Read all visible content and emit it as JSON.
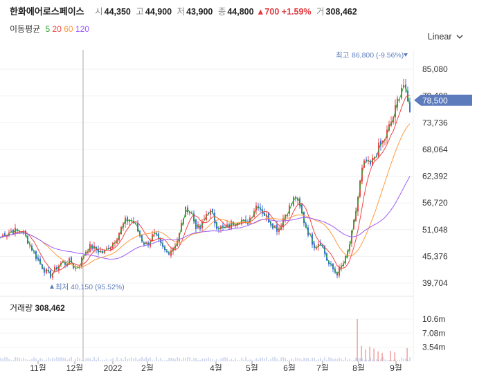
{
  "header": {
    "stock_name": "한화에어로스페이스",
    "open_label": "시",
    "open_value": "44,350",
    "high_label": "고",
    "high_value": "44,900",
    "low_label": "저",
    "low_value": "43,900",
    "close_label": "종",
    "close_value": "44,800",
    "change_value": "▲700",
    "change_pct": "+1.59%",
    "volume_label": "거",
    "volume_value": "308,462"
  },
  "ma_legend": {
    "label": "이동평균",
    "items": [
      {
        "period": "5",
        "color": "#2eaa2e"
      },
      {
        "period": "20",
        "color": "#ee4444"
      },
      {
        "period": "60",
        "color": "#ff9a3c"
      },
      {
        "period": "120",
        "color": "#9b5cf6"
      }
    ]
  },
  "scale_selector": {
    "label": "Linear",
    "icon": "chevron-down-icon"
  },
  "price_tag": {
    "value": "78,500",
    "color": "#5b7bbd"
  },
  "annotations": {
    "high": {
      "label": "최고",
      "value": "86,800 (-9.56%)"
    },
    "low": {
      "label": "최저",
      "value": "40,150 (95.52%)"
    }
  },
  "volume_panel": {
    "label": "거래량",
    "value": "308,462"
  },
  "chart_data": {
    "type": "candlestick",
    "price_axis": {
      "ticks": [
        "85,080",
        "79,408",
        "73,736",
        "68,064",
        "62,392",
        "56,720",
        "51,048",
        "45,376",
        "39,704"
      ],
      "ylim": [
        38500,
        89000
      ]
    },
    "volume_axis": {
      "ticks": [
        "10.6m",
        "7.08m",
        "3.54m"
      ]
    },
    "x_ticks": [
      "11월",
      "12월",
      "2022",
      "2월",
      "4월",
      "5월",
      "6월",
      "7월",
      "8월",
      "9월"
    ],
    "close_path": [
      [
        0,
        49200
      ],
      [
        6,
        50200
      ],
      [
        12,
        50400
      ],
      [
        18,
        51000
      ],
      [
        24,
        50600
      ],
      [
        30,
        50800
      ],
      [
        36,
        49800
      ],
      [
        42,
        48200
      ],
      [
        48,
        46500
      ],
      [
        54,
        44800
      ],
      [
        60,
        43400
      ],
      [
        66,
        42200
      ],
      [
        72,
        41200
      ],
      [
        78,
        42300
      ],
      [
        84,
        43400
      ],
      [
        90,
        44200
      ],
      [
        96,
        43800
      ],
      [
        102,
        44400
      ],
      [
        108,
        42700
      ],
      [
        114,
        43500
      ],
      [
        120,
        45400
      ],
      [
        126,
        47200
      ],
      [
        132,
        47400
      ],
      [
        138,
        46800
      ],
      [
        144,
        46500
      ],
      [
        150,
        46000
      ],
      [
        156,
        47300
      ],
      [
        162,
        48100
      ],
      [
        168,
        49500
      ],
      [
        174,
        51000
      ],
      [
        180,
        52600
      ],
      [
        186,
        53300
      ],
      [
        192,
        52800
      ],
      [
        198,
        51100
      ],
      [
        204,
        49200
      ],
      [
        210,
        47800
      ],
      [
        216,
        48600
      ],
      [
        222,
        50100
      ],
      [
        228,
        48700
      ],
      [
        234,
        47200
      ],
      [
        240,
        46200
      ],
      [
        246,
        46700
      ],
      [
        252,
        47800
      ],
      [
        258,
        49400
      ],
      [
        264,
        53400
      ],
      [
        270,
        55900
      ],
      [
        276,
        54700
      ],
      [
        282,
        52100
      ],
      [
        288,
        50900
      ],
      [
        294,
        52700
      ],
      [
        300,
        55300
      ],
      [
        306,
        54300
      ],
      [
        312,
        52200
      ],
      [
        318,
        51500
      ],
      [
        324,
        50900
      ],
      [
        330,
        51800
      ],
      [
        336,
        52500
      ],
      [
        342,
        53200
      ],
      [
        348,
        53400
      ],
      [
        354,
        51800
      ],
      [
        360,
        53300
      ],
      [
        366,
        55100
      ],
      [
        372,
        56700
      ],
      [
        378,
        55200
      ],
      [
        384,
        53900
      ],
      [
        390,
        52900
      ],
      [
        396,
        51800
      ],
      [
        402,
        51100
      ],
      [
        408,
        53200
      ],
      [
        414,
        54900
      ],
      [
        420,
        56100
      ],
      [
        426,
        58300
      ],
      [
        432,
        56200
      ],
      [
        438,
        53300
      ],
      [
        444,
        50900
      ],
      [
        450,
        48800
      ],
      [
        456,
        47400
      ],
      [
        462,
        48900
      ],
      [
        468,
        46500
      ],
      [
        474,
        43800
      ],
      [
        480,
        42800
      ],
      [
        486,
        41700
      ],
      [
        492,
        42900
      ],
      [
        498,
        44300
      ],
      [
        504,
        47200
      ],
      [
        510,
        51500
      ],
      [
        516,
        56900
      ],
      [
        522,
        63100
      ],
      [
        528,
        65600
      ],
      [
        534,
        64300
      ],
      [
        540,
        66200
      ],
      [
        546,
        68200
      ],
      [
        552,
        69200
      ],
      [
        558,
        71200
      ],
      [
        564,
        73500
      ],
      [
        570,
        75800
      ],
      [
        576,
        79500
      ],
      [
        582,
        82500
      ],
      [
        588,
        78200
      ],
      [
        594,
        76300
      ]
    ],
    "series": [
      {
        "name": "5",
        "color": "#2eaa2e"
      },
      {
        "name": "20",
        "color": "#ee4444"
      },
      {
        "name": "60",
        "color": "#ff9a3c"
      },
      {
        "name": "120",
        "color": "#9b5cf6"
      }
    ],
    "high": 86800,
    "low": 40150,
    "last_price": 78500,
    "last_volume": 308462,
    "volume_spikes": [
      [
        516,
        10600000
      ],
      [
        522,
        3900000
      ],
      [
        528,
        3000000
      ],
      [
        534,
        3700000
      ],
      [
        540,
        3200000
      ],
      [
        546,
        2500000
      ],
      [
        552,
        2100000
      ],
      [
        564,
        2600000
      ],
      [
        570,
        2300000
      ],
      [
        588,
        3300000
      ]
    ]
  }
}
